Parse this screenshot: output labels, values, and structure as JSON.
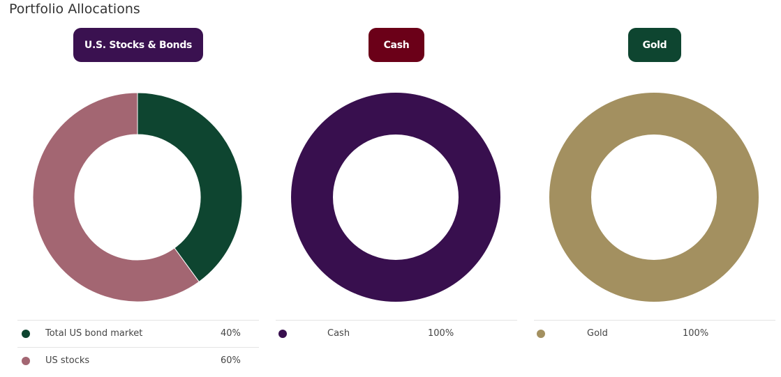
{
  "page_title": "Portfolio Allocations",
  "chart_data": [
    {
      "type": "pie",
      "title": "U.S. Stocks & Bonds",
      "badge_color": "#3a1150",
      "categories": [
        "Total US bond market",
        "US stocks"
      ],
      "values": [
        40,
        60
      ],
      "value_labels": [
        "40%",
        "60%"
      ],
      "colors": [
        "#0e4530",
        "#a36672"
      ]
    },
    {
      "type": "pie",
      "title": "Cash",
      "badge_color": "#6b0018",
      "categories": [
        "Cash"
      ],
      "values": [
        100
      ],
      "value_labels": [
        "100%"
      ],
      "colors": [
        "#380f4e"
      ]
    },
    {
      "type": "pie",
      "title": "Gold",
      "badge_color": "#0e4530",
      "categories": [
        "Gold"
      ],
      "values": [
        100
      ],
      "value_labels": [
        "100%"
      ],
      "colors": [
        "#a39060"
      ]
    }
  ]
}
